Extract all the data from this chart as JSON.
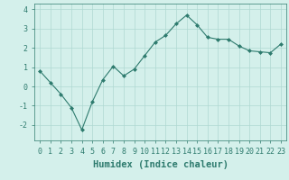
{
  "x": [
    0,
    1,
    2,
    3,
    4,
    5,
    6,
    7,
    8,
    9,
    10,
    11,
    12,
    13,
    14,
    15,
    16,
    17,
    18,
    19,
    20,
    21,
    22,
    23
  ],
  "y": [
    0.8,
    0.2,
    -0.4,
    -1.1,
    -2.25,
    -0.8,
    0.35,
    1.05,
    0.55,
    0.9,
    1.6,
    2.3,
    2.65,
    3.25,
    3.7,
    3.2,
    2.55,
    2.45,
    2.45,
    2.1,
    1.85,
    1.8,
    1.75,
    2.2
  ],
  "line_color": "#2e7b6e",
  "marker": "D",
  "marker_size": 2,
  "bg_color": "#d4f0eb",
  "grid_color": "#afd9d2",
  "xlabel": "Humidex (Indice chaleur)",
  "xlabel_fontsize": 7.5,
  "tick_fontsize": 6,
  "xlim": [
    -0.5,
    23.5
  ],
  "ylim": [
    -2.8,
    4.3
  ],
  "yticks": [
    -2,
    -1,
    0,
    1,
    2,
    3,
    4
  ],
  "xticks": [
    0,
    1,
    2,
    3,
    4,
    5,
    6,
    7,
    8,
    9,
    10,
    11,
    12,
    13,
    14,
    15,
    16,
    17,
    18,
    19,
    20,
    21,
    22,
    23
  ]
}
